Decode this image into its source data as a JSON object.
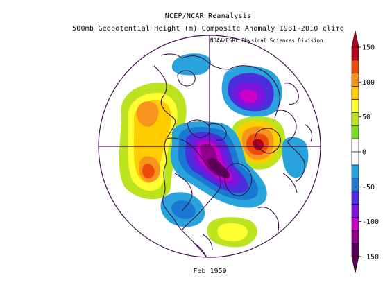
{
  "title_line1": "NCEP/NCAR Reanalysis",
  "title_line2": "500mb Geopotential Height (m) Composite Anomaly 1981-2010 climo",
  "credit": "NOAA/ESRL Physical Sciences Division",
  "date_label": "Feb 1959",
  "colorbar": {
    "ticks": [
      "150",
      "100",
      "50",
      "0",
      "-50",
      "-100",
      "-150"
    ],
    "levels": [
      {
        "color": "#b4001e"
      },
      {
        "color": "#f04a0a"
      },
      {
        "color": "#f7941d"
      },
      {
        "color": "#ffcc00"
      },
      {
        "color": "#ffff32"
      },
      {
        "color": "#bce41e"
      },
      {
        "color": "#7ddc28"
      },
      {
        "color": "#ffffff"
      },
      {
        "color": "#ffffff"
      },
      {
        "color": "#29a3dc"
      },
      {
        "color": "#1978d2"
      },
      {
        "color": "#4b2ddc"
      },
      {
        "color": "#7d14dc"
      },
      {
        "color": "#c800c8"
      },
      {
        "color": "#91008c"
      },
      {
        "color": "#5a005a"
      }
    ],
    "top_arrow_color": "#b4001e",
    "bottom_arrow_color": "#5a005a"
  }
}
